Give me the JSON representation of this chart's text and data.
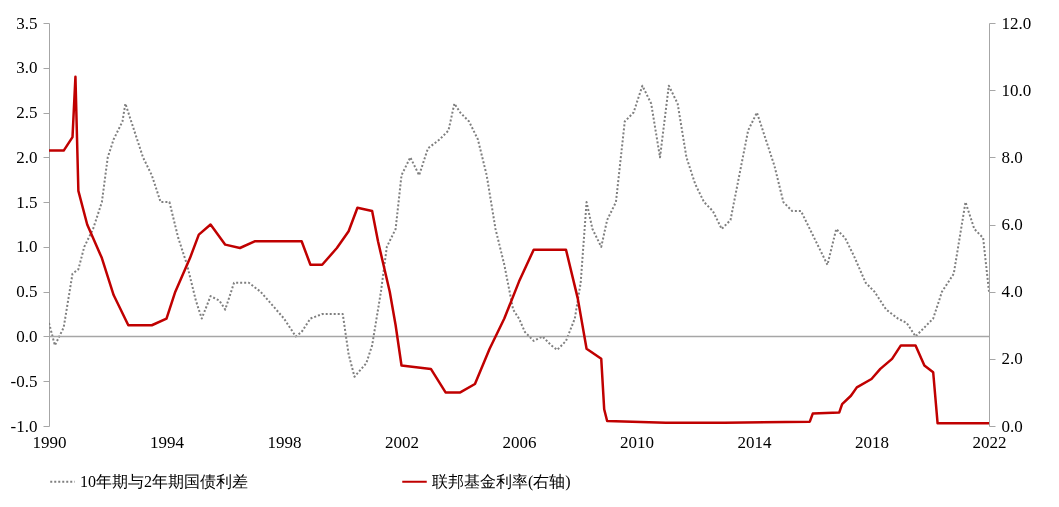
{
  "chart_data": {
    "type": "line",
    "xlim": [
      1990,
      2022
    ],
    "xticks": [
      1990,
      1994,
      1998,
      2002,
      2006,
      2010,
      2014,
      2018,
      2022
    ],
    "ylim": [
      -1.0,
      3.5
    ],
    "yticks": [
      {
        "value": -1,
        "label": "-1.0"
      },
      {
        "value": -0.5,
        "label": "-0.5"
      },
      {
        "value": 0,
        "label": "0.0"
      },
      {
        "value": 0.5,
        "label": "0.5"
      },
      {
        "value": 1,
        "label": "1.0"
      },
      {
        "value": 1.5,
        "label": "1.5"
      },
      {
        "value": 2,
        "label": "2.0"
      },
      {
        "value": 2.5,
        "label": "2.5"
      },
      {
        "value": 3,
        "label": "3.0"
      },
      {
        "value": 3.5,
        "label": "3.5"
      }
    ],
    "y2lim": [
      0,
      12
    ],
    "y2ticks": [
      {
        "value": 0,
        "label": "0.0"
      },
      {
        "value": 2,
        "label": "2.0"
      },
      {
        "value": 4,
        "label": "4.0"
      },
      {
        "value": 6,
        "label": "6.0"
      },
      {
        "value": 8,
        "label": "8.0"
      },
      {
        "value": 10,
        "label": "10.0"
      },
      {
        "value": 12,
        "label": "12.0"
      }
    ],
    "grid": false,
    "legend": "bottom",
    "marker": "none",
    "ref_lines": [
      {
        "axis": "y",
        "value": 0,
        "color": "#a6a6a6"
      }
    ],
    "series": [
      {
        "name": "10年期与2年期国债利差",
        "color": "#7f7f7f",
        "line_style": "dotted",
        "x": [
          1990.0,
          1990.2,
          1990.5,
          1990.8,
          1991.0,
          1991.2,
          1991.5,
          1991.8,
          1992.0,
          1992.2,
          1992.5,
          1992.6,
          1992.9,
          1993.2,
          1993.5,
          1993.8,
          1994.1,
          1994.4,
          1994.7,
          1995.0,
          1995.2,
          1995.5,
          1995.8,
          1996.0,
          1996.3,
          1996.8,
          1997.2,
          1997.6,
          1998.0,
          1998.4,
          1998.6,
          1998.9,
          1999.3,
          1999.7,
          2000.0,
          2000.2,
          2000.4,
          2000.8,
          2001.0,
          2001.3,
          2001.5,
          2001.8,
          2002.0,
          2002.3,
          2002.6,
          2002.9,
          2003.3,
          2003.6,
          2003.8,
          2004.0,
          2004.3,
          2004.6,
          2004.9,
          2005.2,
          2005.5,
          2005.8,
          2006.0,
          2006.2,
          2006.5,
          2006.8,
          2007.1,
          2007.3,
          2007.6,
          2007.9,
          2008.1,
          2008.3,
          2008.5,
          2008.8,
          2009.0,
          2009.3,
          2009.6,
          2009.9,
          2010.2,
          2010.5,
          2010.8,
          2011.1,
          2011.4,
          2011.7,
          2012.0,
          2012.3,
          2012.6,
          2012.9,
          2013.2,
          2013.5,
          2013.8,
          2014.1,
          2014.4,
          2014.7,
          2015.0,
          2015.3,
          2015.6,
          2015.9,
          2016.2,
          2016.5,
          2016.8,
          2017.1,
          2017.4,
          2017.8,
          2018.1,
          2018.5,
          2018.9,
          2019.2,
          2019.5,
          2019.8,
          2020.1,
          2020.4,
          2020.8,
          2021.2,
          2021.5,
          2021.8,
          2022.0
        ],
        "values": [
          0.15,
          -0.1,
          0.1,
          0.7,
          0.75,
          1.0,
          1.2,
          1.5,
          2.0,
          2.2,
          2.4,
          2.6,
          2.3,
          2.0,
          1.8,
          1.5,
          1.5,
          1.1,
          0.8,
          0.4,
          0.2,
          0.45,
          0.4,
          0.3,
          0.6,
          0.6,
          0.5,
          0.35,
          0.2,
          0.0,
          0.05,
          0.2,
          0.25,
          0.25,
          0.25,
          -0.2,
          -0.45,
          -0.3,
          -0.1,
          0.5,
          1.0,
          1.2,
          1.8,
          2.0,
          1.8,
          2.1,
          2.2,
          2.3,
          2.6,
          2.5,
          2.4,
          2.2,
          1.8,
          1.2,
          0.8,
          0.3,
          0.2,
          0.05,
          -0.05,
          0.0,
          -0.1,
          -0.15,
          -0.05,
          0.2,
          0.6,
          1.5,
          1.2,
          1.0,
          1.3,
          1.5,
          2.4,
          2.5,
          2.8,
          2.6,
          2.0,
          2.8,
          2.6,
          2.0,
          1.7,
          1.5,
          1.4,
          1.2,
          1.3,
          1.8,
          2.3,
          2.5,
          2.2,
          1.9,
          1.5,
          1.4,
          1.4,
          1.2,
          1.0,
          0.8,
          1.2,
          1.1,
          0.9,
          0.6,
          0.5,
          0.3,
          0.2,
          0.15,
          0.0,
          0.1,
          0.2,
          0.5,
          0.7,
          1.5,
          1.2,
          1.1,
          0.5
        ]
      },
      {
        "name": "联邦基金利率(右轴)",
        "color": "#c00000",
        "line_style": "solid",
        "axis": "y2",
        "x": [
          1990.0,
          1990.5,
          1990.8,
          1990.9,
          1991.0,
          1991.3,
          1991.8,
          1992.2,
          1992.7,
          1993.0,
          1993.5,
          1994.0,
          1994.3,
          1994.8,
          1995.1,
          1995.5,
          1996.0,
          1996.5,
          1997.0,
          1997.5,
          1998.0,
          1998.6,
          1998.9,
          1999.3,
          1999.8,
          2000.2,
          2000.5,
          2001.0,
          2001.2,
          2001.6,
          2001.8,
          2002.0,
          2002.5,
          2003.0,
          2003.5,
          2004.0,
          2004.5,
          2005.0,
          2005.5,
          2006.0,
          2006.5,
          2007.0,
          2007.6,
          2008.0,
          2008.3,
          2008.8,
          2008.9,
          2009.0,
          2011.0,
          2013.0,
          2015.9,
          2016.0,
          2016.9,
          2017.0,
          2017.3,
          2017.5,
          2018.0,
          2018.3,
          2018.7,
          2019.0,
          2019.5,
          2019.8,
          2020.1,
          2020.25,
          2022.0
        ],
        "values": [
          8.2,
          8.2,
          8.6,
          10.4,
          7.0,
          6.0,
          5.0,
          3.9,
          3.0,
          3.0,
          3.0,
          3.2,
          4.0,
          5.0,
          5.7,
          6.0,
          5.4,
          5.3,
          5.5,
          5.5,
          5.5,
          5.5,
          4.8,
          4.8,
          5.3,
          5.8,
          6.5,
          6.4,
          5.5,
          4.0,
          3.0,
          1.8,
          1.75,
          1.7,
          1.0,
          1.0,
          1.25,
          2.3,
          3.2,
          4.3,
          5.25,
          5.25,
          5.25,
          3.8,
          2.3,
          2.0,
          0.5,
          0.15,
          0.1,
          0.1,
          0.13,
          0.37,
          0.4,
          0.65,
          0.9,
          1.15,
          1.4,
          1.7,
          2.0,
          2.4,
          2.4,
          1.8,
          1.6,
          0.08,
          0.08
        ]
      }
    ]
  }
}
